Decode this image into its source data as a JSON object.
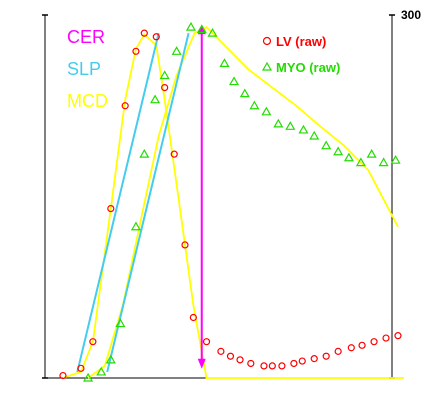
{
  "chart_data": {
    "type": "scatter",
    "title": "",
    "xlabel": "",
    "ylabel": "",
    "ylim": [
      0,
      300
    ],
    "xlim": [
      0,
      29
    ],
    "y_tick_label_max": "300",
    "grid": false,
    "annotations": [
      {
        "text": "CER",
        "color": "#ff00ff"
      },
      {
        "text": "SLP",
        "color": "#44ccee"
      },
      {
        "text": "MCD",
        "color": "#ffff00"
      }
    ],
    "legend": {
      "placement": "top-right",
      "entries": [
        {
          "label": "LV (raw)",
          "color": "#ff0000",
          "marker": "circle"
        },
        {
          "label": "MYO (raw)",
          "color": "#22dd00",
          "marker": "triangle"
        }
      ]
    },
    "series": [
      {
        "name": "LV (raw)",
        "color": "#ff0000",
        "marker": "circle",
        "x": [
          1.5,
          3,
          4,
          5.5,
          6.7,
          7.6,
          8.3,
          9.3,
          10,
          10.8,
          11.7,
          12.4,
          13.5,
          14.7,
          15.5,
          16.3,
          17.2,
          18.3,
          19,
          19.8,
          20.8,
          21.5,
          22.5,
          23.5,
          24.5,
          25.6,
          26.5,
          27.5,
          28.5,
          29.5
        ],
        "y": [
          2,
          8,
          30,
          140,
          225,
          270,
          285,
          282,
          240,
          185,
          110,
          50,
          30,
          22,
          18,
          15,
          12,
          10,
          10,
          10,
          12,
          14,
          16,
          18,
          22,
          25,
          27,
          30,
          33,
          35
        ]
      },
      {
        "name": "MYO (raw)",
        "color": "#22dd00",
        "marker": "triangle",
        "x": [
          3.6,
          4.7,
          5.5,
          6.3,
          7.6,
          8.3,
          9.2,
          10,
          11,
          12.2,
          13.1,
          14,
          15,
          15.8,
          16.7,
          17.5,
          18.5,
          19.5,
          20.5,
          21.6,
          22.5,
          23.5,
          24.5,
          25.4,
          26.4,
          27.3,
          28.3,
          29.3
        ],
        "y": [
          0,
          5,
          15,
          45,
          125,
          185,
          230,
          250,
          270,
          290,
          288,
          285,
          260,
          245,
          235,
          225,
          220,
          210,
          208,
          205,
          200,
          192,
          187,
          182,
          178,
          185,
          178,
          180
        ]
      }
    ],
    "fit_curves": [
      {
        "name": "MCD",
        "color": "#ffff00",
        "x": [
          1.5,
          3,
          4,
          5.5,
          6.7,
          7.6,
          8.3,
          9.3,
          10,
          11,
          12.4,
          13.5,
          14.5,
          16,
          18,
          20,
          22,
          24,
          26,
          28,
          30
        ],
        "y": [
          0,
          5,
          30,
          140,
          230,
          272,
          284,
          275,
          230,
          160,
          60,
          0,
          0,
          0,
          0,
          0,
          0,
          0,
          0,
          0,
          0
        ]
      },
      {
        "name": "MCD",
        "color": "#ffff00",
        "x": [
          3.6,
          5,
          6.5,
          8,
          9.5,
          11,
          12.5,
          13.5,
          15,
          17,
          19,
          21,
          23,
          25,
          27,
          29.5
        ],
        "y": [
          0,
          10,
          60,
          130,
          200,
          250,
          285,
          290,
          275,
          255,
          240,
          225,
          208,
          192,
          172,
          125
        ]
      }
    ],
    "slope_lines": [
      {
        "name": "SLP",
        "color": "#44ccee",
        "x": [
          2.7,
          9.5
        ],
        "y": [
          5,
          285
        ]
      },
      {
        "name": "SLP",
        "color": "#44ccee",
        "x": [
          5.2,
          12
        ],
        "y": [
          5,
          285
        ]
      }
    ],
    "marker_arrow": {
      "color": "#ff00ff",
      "x": 13.1,
      "y_from": 11,
      "y_to": 289
    }
  }
}
